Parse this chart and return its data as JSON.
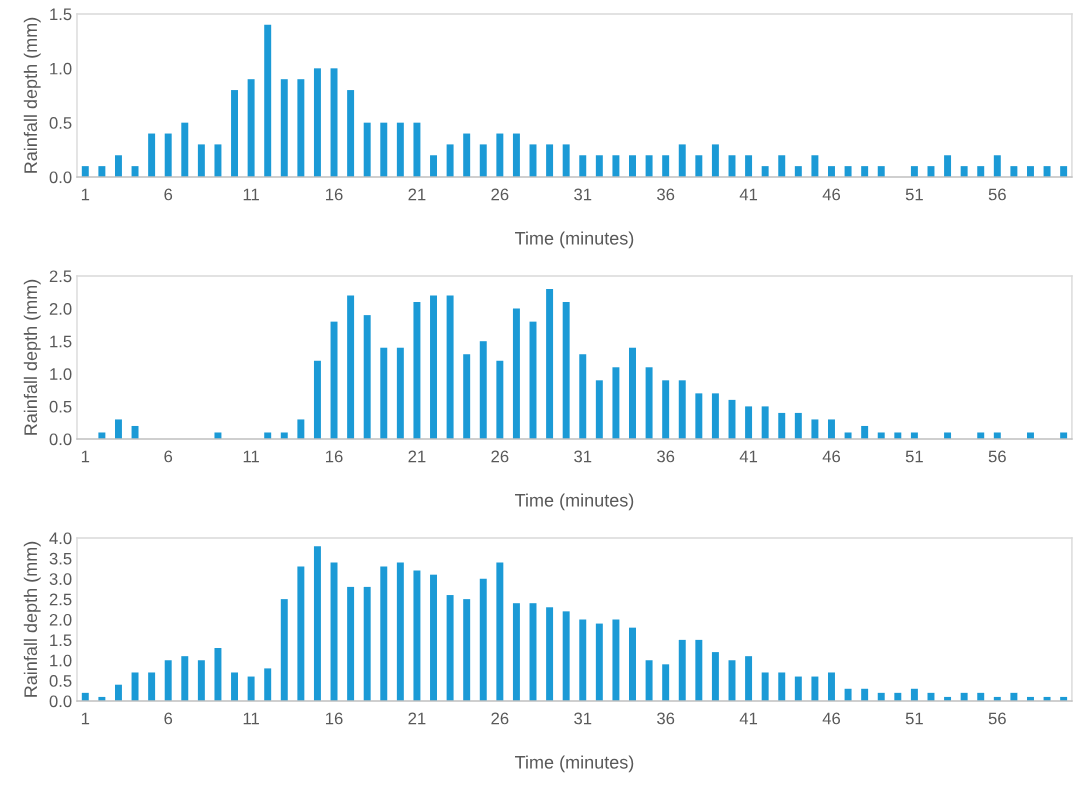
{
  "chart_data": [
    {
      "type": "bar",
      "xlabel": "Time (minutes)",
      "ylabel": "Rainfall depth (mm)",
      "color": "#1b9ad6",
      "categories": [
        "1",
        null,
        null,
        null,
        null,
        "6",
        null,
        null,
        null,
        null,
        "11",
        null,
        null,
        null,
        null,
        "16",
        null,
        null,
        null,
        null,
        "21",
        null,
        null,
        null,
        null,
        "26",
        null,
        null,
        null,
        null,
        "31",
        null,
        null,
        null,
        null,
        "36",
        null,
        null,
        null,
        null,
        "41",
        null,
        null,
        null,
        null,
        "46",
        null,
        null,
        null,
        null,
        "51",
        null,
        null,
        null,
        null,
        "56",
        null,
        null,
        null,
        null
      ],
      "values": [
        0.1,
        0.1,
        0.2,
        0.1,
        0.4,
        0.4,
        0.5,
        0.3,
        0.3,
        0.8,
        0.9,
        1.4,
        0.9,
        0.9,
        1.0,
        1.0,
        0.8,
        0.5,
        0.5,
        0.5,
        0.5,
        0.2,
        0.3,
        0.4,
        0.3,
        0.4,
        0.4,
        0.3,
        0.3,
        0.3,
        0.2,
        0.2,
        0.2,
        0.2,
        0.2,
        0.2,
        0.3,
        0.2,
        0.3,
        0.2,
        0.2,
        0.1,
        0.2,
        0.1,
        0.2,
        0.1,
        0.1,
        0.1,
        0.1,
        0,
        0.1,
        0.1,
        0.2,
        0.1,
        0.1,
        0.2,
        0.1,
        0.1,
        0.1,
        0.1
      ],
      "ylim": [
        0,
        1.5
      ],
      "yticks": [
        {
          "value": 0,
          "label": "0.0"
        },
        {
          "value": 0.5,
          "label": "0.5"
        },
        {
          "value": 1.0,
          "label": "1.0"
        },
        {
          "value": 1.5,
          "label": "1.5"
        }
      ]
    },
    {
      "type": "bar",
      "xlabel": "Time (minutes)",
      "ylabel": "Rainfall depth (mm)",
      "color": "#1b9ad6",
      "categories": [
        "1",
        null,
        null,
        null,
        null,
        "6",
        null,
        null,
        null,
        null,
        "11",
        null,
        null,
        null,
        null,
        "16",
        null,
        null,
        null,
        null,
        "21",
        null,
        null,
        null,
        null,
        "26",
        null,
        null,
        null,
        null,
        "31",
        null,
        null,
        null,
        null,
        "36",
        null,
        null,
        null,
        null,
        "41",
        null,
        null,
        null,
        null,
        "46",
        null,
        null,
        null,
        null,
        "51",
        null,
        null,
        null,
        null,
        "56",
        null,
        null,
        null,
        null
      ],
      "values": [
        0,
        0.1,
        0.3,
        0.2,
        0,
        0,
        0,
        0,
        0.1,
        0,
        0,
        0.1,
        0.1,
        0.3,
        1.2,
        1.8,
        2.2,
        1.9,
        1.4,
        1.4,
        2.1,
        2.2,
        2.2,
        1.3,
        1.5,
        1.2,
        2.0,
        1.8,
        2.3,
        2.1,
        1.3,
        0.9,
        1.1,
        1.4,
        1.1,
        0.9,
        0.9,
        0.7,
        0.7,
        0.6,
        0.5,
        0.5,
        0.4,
        0.4,
        0.3,
        0.3,
        0.1,
        0.2,
        0.1,
        0.1,
        0.1,
        0,
        0.1,
        0,
        0.1,
        0.1,
        0,
        0.1,
        0,
        0.1
      ],
      "ylim": [
        0,
        2.5
      ],
      "yticks": [
        {
          "value": 0,
          "label": "0.0"
        },
        {
          "value": 0.5,
          "label": "0.5"
        },
        {
          "value": 1.0,
          "label": "1.0"
        },
        {
          "value": 1.5,
          "label": "1.5"
        },
        {
          "value": 2.0,
          "label": "2.0"
        },
        {
          "value": 2.5,
          "label": "2.5"
        }
      ]
    },
    {
      "type": "bar",
      "xlabel": "Time (minutes)",
      "ylabel": "Rainfall depth (mm)",
      "color": "#1b9ad6",
      "categories": [
        "1",
        null,
        null,
        null,
        null,
        "6",
        null,
        null,
        null,
        null,
        "11",
        null,
        null,
        null,
        null,
        "16",
        null,
        null,
        null,
        null,
        "21",
        null,
        null,
        null,
        null,
        "26",
        null,
        null,
        null,
        null,
        "31",
        null,
        null,
        null,
        null,
        "36",
        null,
        null,
        null,
        null,
        "41",
        null,
        null,
        null,
        null,
        "46",
        null,
        null,
        null,
        null,
        "51",
        null,
        null,
        null,
        null,
        "56",
        null,
        null,
        null,
        null
      ],
      "values": [
        0.2,
        0.1,
        0.4,
        0.7,
        0.7,
        1.0,
        1.1,
        1.0,
        1.3,
        0.7,
        0.6,
        0.8,
        2.5,
        3.3,
        3.8,
        3.4,
        2.8,
        2.8,
        3.3,
        3.4,
        3.2,
        3.1,
        2.6,
        2.5,
        3.0,
        3.4,
        2.4,
        2.4,
        2.3,
        2.2,
        2.0,
        1.9,
        2.0,
        1.8,
        1.0,
        0.9,
        1.5,
        1.5,
        1.2,
        1.0,
        1.1,
        0.7,
        0.7,
        0.6,
        0.6,
        0.7,
        0.3,
        0.3,
        0.2,
        0.2,
        0.3,
        0.2,
        0.1,
        0.2,
        0.2,
        0.1,
        0.2,
        0.1,
        0.1,
        0.1
      ],
      "ylim": [
        0,
        4.0
      ],
      "yticks": [
        {
          "value": 0,
          "label": "0.0"
        },
        {
          "value": 0.5,
          "label": "0.5"
        },
        {
          "value": 1.0,
          "label": "1.0"
        },
        {
          "value": 1.5,
          "label": "1.5"
        },
        {
          "value": 2.0,
          "label": "2.0"
        },
        {
          "value": 2.5,
          "label": "2.5"
        },
        {
          "value": 3.0,
          "label": "3.0"
        },
        {
          "value": 3.5,
          "label": "3.5"
        },
        {
          "value": 4.0,
          "label": "4.0"
        }
      ]
    }
  ]
}
